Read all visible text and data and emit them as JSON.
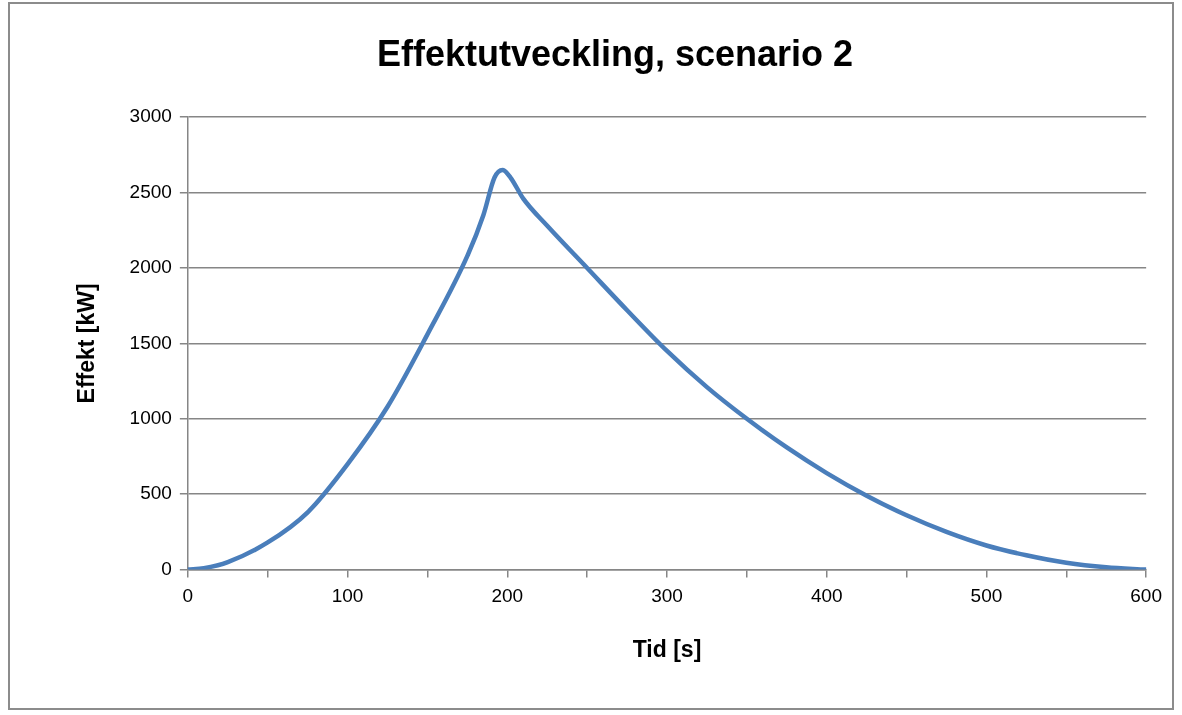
{
  "chart_data": {
    "type": "line",
    "title": "Effektutveckling, scenario 2",
    "xlabel": "Tid [s]",
    "ylabel": "Effekt [kW]",
    "x": [
      0,
      10,
      25,
      50,
      75,
      100,
      125,
      150,
      175,
      185,
      192,
      197,
      202,
      210,
      225,
      250,
      275,
      300,
      325,
      350,
      375,
      400,
      425,
      450,
      475,
      500,
      525,
      550,
      575,
      600
    ],
    "series": [
      {
        "color": "#4a7ebb",
        "values": [
          0,
          10,
          50,
          180,
          380,
          700,
          1080,
          1560,
          2080,
          2350,
          2600,
          2650,
          2600,
          2460,
          2280,
          2000,
          1720,
          1450,
          1210,
          1000,
          810,
          640,
          490,
          360,
          250,
          160,
          95,
          45,
          15,
          0
        ]
      }
    ],
    "xlim": [
      0,
      600
    ],
    "ylim": [
      0,
      3000
    ],
    "xticks": [
      0,
      {
        "value": 50,
        "label": null
      },
      100,
      {
        "value": 150,
        "label": null
      },
      200,
      {
        "value": 250,
        "label": null
      },
      300,
      {
        "value": 350,
        "label": null
      },
      400,
      {
        "value": 450,
        "label": null
      },
      500,
      {
        "value": 550,
        "label": null
      },
      600
    ],
    "yticks": [
      0,
      500,
      1000,
      1500,
      2000,
      2500,
      3000
    ],
    "grid": "y",
    "legend": false,
    "marker": "none",
    "line_style": "solid"
  }
}
